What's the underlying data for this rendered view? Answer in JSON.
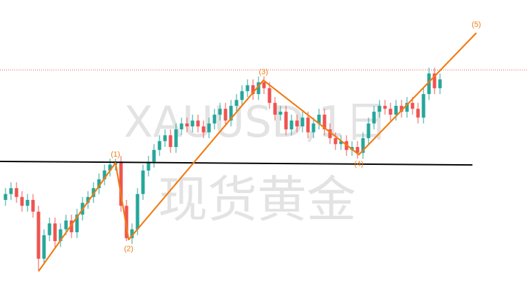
{
  "chart_data": {
    "type": "candlestick",
    "watermark_symbol": "XAUUSD,1日",
    "watermark_name": "现货黄金",
    "xlim": [
      -1,
      95
    ],
    "ylim": [
      0,
      100
    ],
    "up_color": "#26a69a",
    "down_color": "#ef5350",
    "open": [
      32,
      34,
      36,
      33,
      30,
      32,
      28,
      12,
      20,
      24,
      18,
      22,
      25,
      21,
      27,
      31,
      33,
      36,
      39,
      42,
      44,
      45,
      30,
      19,
      22,
      34,
      42,
      45,
      49,
      52,
      54,
      50,
      56,
      58,
      57,
      59,
      57,
      55,
      58,
      61,
      63,
      59,
      64,
      66,
      69,
      71,
      68,
      72,
      70,
      65,
      61,
      62,
      56,
      59,
      57,
      60,
      55,
      58,
      61,
      56,
      53,
      51,
      52,
      49,
      50,
      48,
      53,
      58,
      62,
      64,
      63,
      61,
      64,
      62,
      65,
      63,
      60,
      68,
      75,
      70
    ],
    "high": [
      36,
      38,
      38,
      35,
      34,
      34,
      30,
      22,
      26,
      26,
      24,
      27,
      27,
      29,
      33,
      35,
      38,
      41,
      44,
      46,
      46,
      47,
      32,
      24,
      36,
      44,
      47,
      51,
      54,
      56,
      56,
      58,
      60,
      60,
      61,
      61,
      59,
      60,
      63,
      65,
      65,
      66,
      68,
      71,
      73,
      73,
      74,
      74,
      72,
      67,
      64,
      64,
      61,
      61,
      62,
      62,
      60,
      63,
      63,
      58,
      55,
      54,
      54,
      52,
      52,
      55,
      60,
      64,
      66,
      66,
      65,
      66,
      66,
      67,
      67,
      65,
      70,
      77,
      77,
      75
    ],
    "low": [
      30,
      32,
      31,
      28,
      28,
      26,
      8,
      10,
      18,
      16,
      16,
      20,
      19,
      19,
      25,
      29,
      31,
      34,
      37,
      40,
      42,
      28,
      18,
      17,
      20,
      32,
      40,
      43,
      47,
      50,
      48,
      48,
      54,
      55,
      55,
      55,
      53,
      53,
      56,
      59,
      57,
      57,
      62,
      64,
      67,
      66,
      66,
      68,
      63,
      59,
      59,
      54,
      54,
      55,
      55,
      53,
      53,
      56,
      54,
      51,
      49,
      49,
      47,
      47,
      46,
      46,
      51,
      56,
      60,
      61,
      59,
      59,
      60,
      60,
      61,
      58,
      58,
      66,
      68,
      68
    ],
    "close": [
      34,
      36,
      33,
      30,
      32,
      28,
      12,
      20,
      24,
      18,
      22,
      25,
      21,
      27,
      31,
      33,
      36,
      39,
      42,
      44,
      45,
      30,
      19,
      22,
      34,
      42,
      45,
      49,
      52,
      54,
      50,
      56,
      58,
      57,
      59,
      57,
      55,
      58,
      61,
      63,
      59,
      64,
      66,
      69,
      71,
      68,
      72,
      70,
      65,
      61,
      62,
      56,
      59,
      57,
      60,
      55,
      58,
      61,
      56,
      53,
      51,
      52,
      49,
      50,
      48,
      53,
      58,
      62,
      64,
      63,
      61,
      64,
      62,
      65,
      63,
      60,
      68,
      75,
      70,
      73
    ],
    "wave": {
      "color": "#f07c12",
      "x": [
        6,
        20,
        22.4,
        46.9,
        64.25,
        85.6
      ],
      "values": [
        7.7,
        44.6,
        18.5,
        72.7,
        47.4,
        88.8
      ],
      "labels": [
        null,
        "(1)",
        "(2)",
        "(3)",
        "(4)",
        "(5)"
      ]
    },
    "trend_line": {
      "color": "#000000",
      "x": [
        -1,
        84.9
      ],
      "values": [
        45.1,
        43.9
      ]
    },
    "price_line": {
      "color": "#e04848",
      "value": 76.2
    }
  }
}
